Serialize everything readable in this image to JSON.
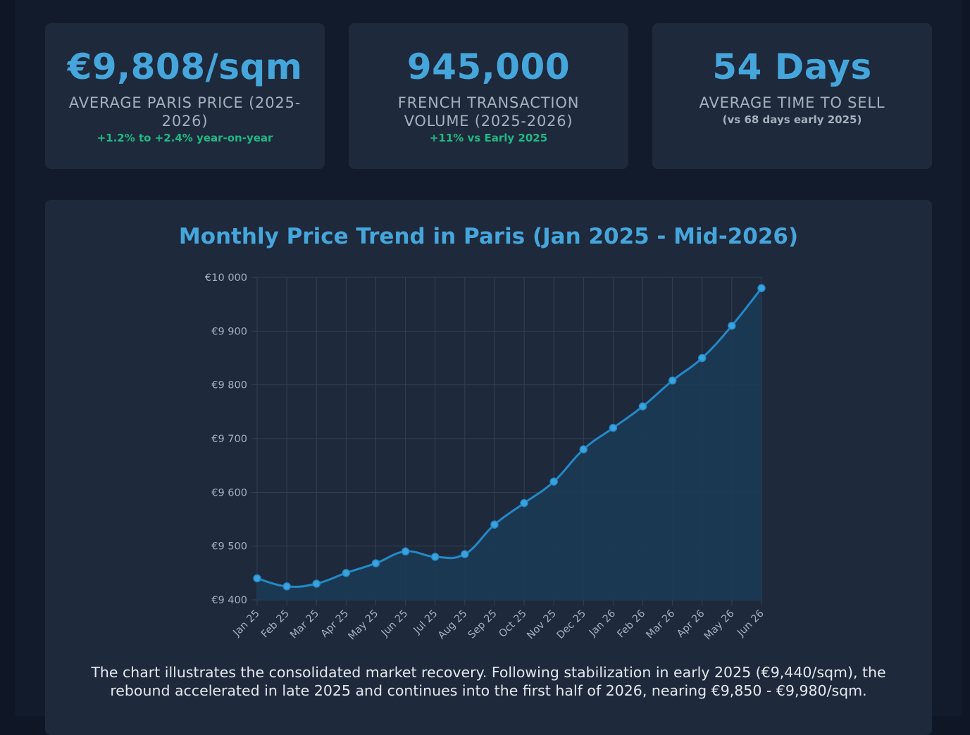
{
  "cards": [
    {
      "value": "€9,808/sqm",
      "label": "AVERAGE PARIS PRICE (2025-2026)",
      "note": "+1.2% to +2.4% year-on-year"
    },
    {
      "value": "945,000",
      "label": "FRENCH TRANSACTION VOLUME (2025-2026)",
      "note": "+11% vs Early 2025"
    },
    {
      "value": "54 Days",
      "label": "AVERAGE TIME TO SELL",
      "sub": "(vs 68 days early 2025)"
    }
  ],
  "colors": {
    "accent": "#45a6dc",
    "positive": "#1fb982",
    "line": "#2389c9",
    "area": "#1b3a55",
    "background": "#111b2b",
    "card": "#1e293b"
  },
  "chart_data": {
    "type": "area",
    "title": "Monthly Price Trend in Paris (Jan 2025 - Mid-2026)",
    "xlabel": "",
    "ylabel": "",
    "categories": [
      "Jan 25",
      "Feb 25",
      "Mar 25",
      "Apr 25",
      "May 25",
      "Jun 25",
      "Jul 25",
      "Aug 25",
      "Sep 25",
      "Oct 25",
      "Nov 25",
      "Dec 25",
      "Jan 26",
      "Feb 26",
      "Mar 26",
      "Apr 26",
      "May 26",
      "Jun 26"
    ],
    "values": [
      9440,
      9425,
      9430,
      9450,
      9468,
      9490,
      9480,
      9485,
      9540,
      9580,
      9620,
      9680,
      9720,
      9760,
      9808,
      9850,
      9910,
      9980
    ],
    "ylim": [
      9400,
      10000
    ],
    "yticks": [
      9400,
      9500,
      9600,
      9700,
      9800,
      9900,
      10000
    ],
    "ytick_labels": [
      "€9 400",
      "€9 500",
      "€9 600",
      "€9 700",
      "€9 800",
      "€9 900",
      "€10 000"
    ],
    "grid": true,
    "legend": "none"
  },
  "caption": "The chart illustrates the consolidated market recovery. Following stabilization in early 2025 (€9,440/sqm), the rebound accelerated in late 2025 and continues into the first half of 2026, nearing €9,850 - €9,980/sqm."
}
